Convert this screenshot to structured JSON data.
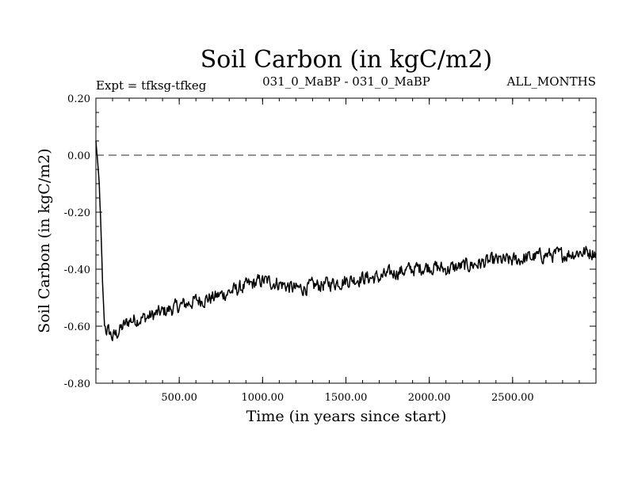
{
  "chart_data": {
    "type": "line",
    "title": "Soil Carbon (in kgC/m2)",
    "subtitle_left": "Expt = tfksg-tfkeg",
    "subtitle_center": "031_0_MaBP - 031_0_MaBP",
    "subtitle_right": "ALL_MONTHS",
    "xlabel": "Time (in years since start)",
    "ylabel": "Soil Carbon (in kgC/m2)",
    "xlim": [
      0,
      3000
    ],
    "ylim": [
      -0.8,
      0.2
    ],
    "xticks": [
      500,
      1000,
      1500,
      2000,
      2500
    ],
    "xtick_labels": [
      "500.00",
      "1000.00",
      "1500.00",
      "2000.00",
      "2500.00"
    ],
    "yticks": [
      0.2,
      0.0,
      -0.2,
      -0.4,
      -0.6,
      -0.8
    ],
    "ytick_labels": [
      "0.20",
      "0.00",
      "-0.20",
      "-0.40",
      "-0.60",
      "-0.80"
    ],
    "reference_line": {
      "y": 0.0,
      "style": "dashed"
    },
    "series": [
      {
        "name": "Soil Carbon",
        "x": [
          0,
          10,
          20,
          30,
          40,
          50,
          60,
          80,
          100,
          150,
          200,
          300,
          400,
          500,
          600,
          700,
          800,
          900,
          1000,
          1100,
          1200,
          1300,
          1400,
          1500,
          1600,
          1700,
          1800,
          1900,
          2000,
          2100,
          2200,
          2300,
          2400,
          2500,
          2600,
          2700,
          2800,
          2900,
          3000
        ],
        "values": [
          0.05,
          -0.02,
          -0.1,
          -0.25,
          -0.45,
          -0.58,
          -0.61,
          -0.62,
          -0.64,
          -0.61,
          -0.58,
          -0.57,
          -0.55,
          -0.53,
          -0.51,
          -0.5,
          -0.48,
          -0.46,
          -0.44,
          -0.45,
          -0.47,
          -0.46,
          -0.45,
          -0.44,
          -0.43,
          -0.43,
          -0.41,
          -0.4,
          -0.39,
          -0.4,
          -0.39,
          -0.38,
          -0.37,
          -0.37,
          -0.36,
          -0.35,
          -0.35,
          -0.34,
          -0.34
        ]
      }
    ]
  }
}
